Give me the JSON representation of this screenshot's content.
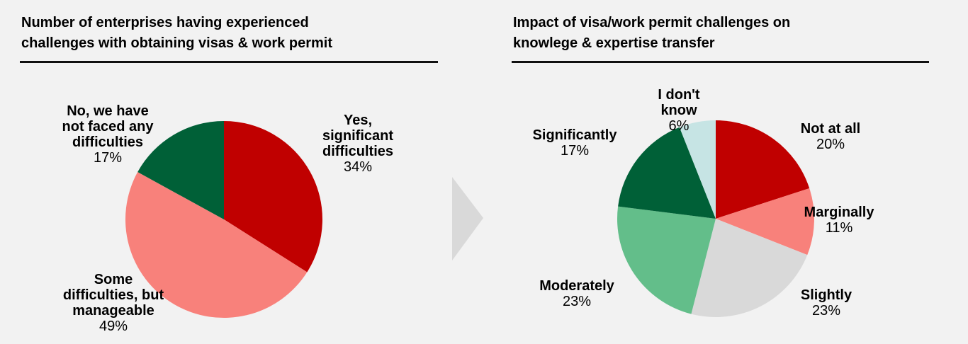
{
  "colors": {
    "background": "#f2f2f2",
    "dark_red": "#c00000",
    "light_red": "#f8817b",
    "dark_green": "#006037",
    "light_green": "#63be8a",
    "light_gray": "#d9d9d9",
    "light_teal": "#c6e4e4",
    "arrow": "#d9d9d9"
  },
  "chart_data": [
    {
      "type": "pie",
      "title": "Number of enterprises having experienced challenges with obtaining visas & work permit",
      "title_lines": [
        "Number of enterprises having experienced",
        "challenges with obtaining visas & work permit"
      ],
      "slices": [
        {
          "label": "Yes, significant difficulties",
          "label_lines": [
            "Yes,",
            "significant",
            "difficulties"
          ],
          "value": 34,
          "value_label": "34%",
          "color": "#c00000"
        },
        {
          "label": "Some difficulties, but manageable",
          "label_lines": [
            "Some",
            "difficulties, but",
            "manageable"
          ],
          "value": 49,
          "value_label": "49%",
          "color": "#f8817b"
        },
        {
          "label": "No, we have not faced any difficulties",
          "label_lines": [
            "No, we have",
            "not faced any",
            "difficulties"
          ],
          "value": 17,
          "value_label": "17%",
          "color": "#006037"
        }
      ]
    },
    {
      "type": "pie",
      "title": "Impact of visa/work permit challenges on knowlege & expertise transfer",
      "title_lines": [
        "Impact of visa/work permit challenges on",
        "knowlege & expertise transfer"
      ],
      "slices": [
        {
          "label": "Not at all",
          "label_lines": [
            "Not at all"
          ],
          "value": 20,
          "value_label": "20%",
          "color": "#c00000"
        },
        {
          "label": "Marginally",
          "label_lines": [
            "Marginally"
          ],
          "value": 11,
          "value_label": "11%",
          "color": "#f8817b"
        },
        {
          "label": "Slightly",
          "label_lines": [
            "Slightly"
          ],
          "value": 23,
          "value_label": "23%",
          "color": "#d9d9d9"
        },
        {
          "label": "Moderately",
          "label_lines": [
            "Moderately"
          ],
          "value": 23,
          "value_label": "23%",
          "color": "#63be8a"
        },
        {
          "label": "Significantly",
          "label_lines": [
            "Significantly"
          ],
          "value": 17,
          "value_label": "17%",
          "color": "#006037"
        },
        {
          "label": "I don't know",
          "label_lines": [
            "I don't",
            "know"
          ],
          "value": 6,
          "value_label": "6%",
          "color": "#c6e4e4"
        }
      ]
    }
  ]
}
